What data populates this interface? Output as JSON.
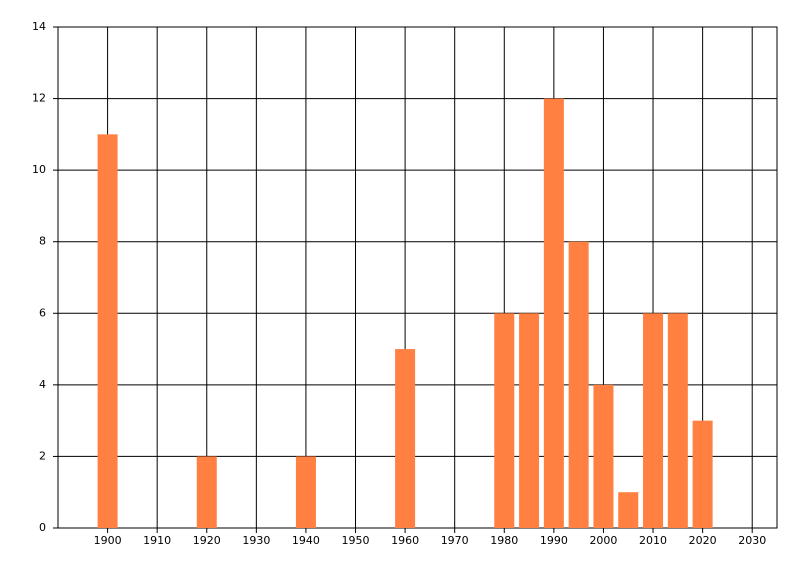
{
  "chart_data": {
    "type": "bar",
    "x": [
      1900,
      1920,
      1940,
      1960,
      1980,
      1985,
      1990,
      1995,
      2000,
      2005,
      2010,
      2015,
      2020
    ],
    "values": [
      11,
      2,
      2,
      5,
      6,
      6,
      12,
      8,
      4,
      1,
      6,
      6,
      3
    ],
    "color": "#ff8040",
    "xlim": [
      1890,
      2035
    ],
    "xticks": [
      1900,
      1910,
      1920,
      1930,
      1940,
      1950,
      1960,
      1970,
      1980,
      1990,
      2000,
      2010,
      2020,
      2030
    ],
    "ylim": [
      0,
      14
    ],
    "yticks": [
      0,
      2,
      4,
      6,
      8,
      10,
      12,
      14
    ],
    "grid": true
  }
}
